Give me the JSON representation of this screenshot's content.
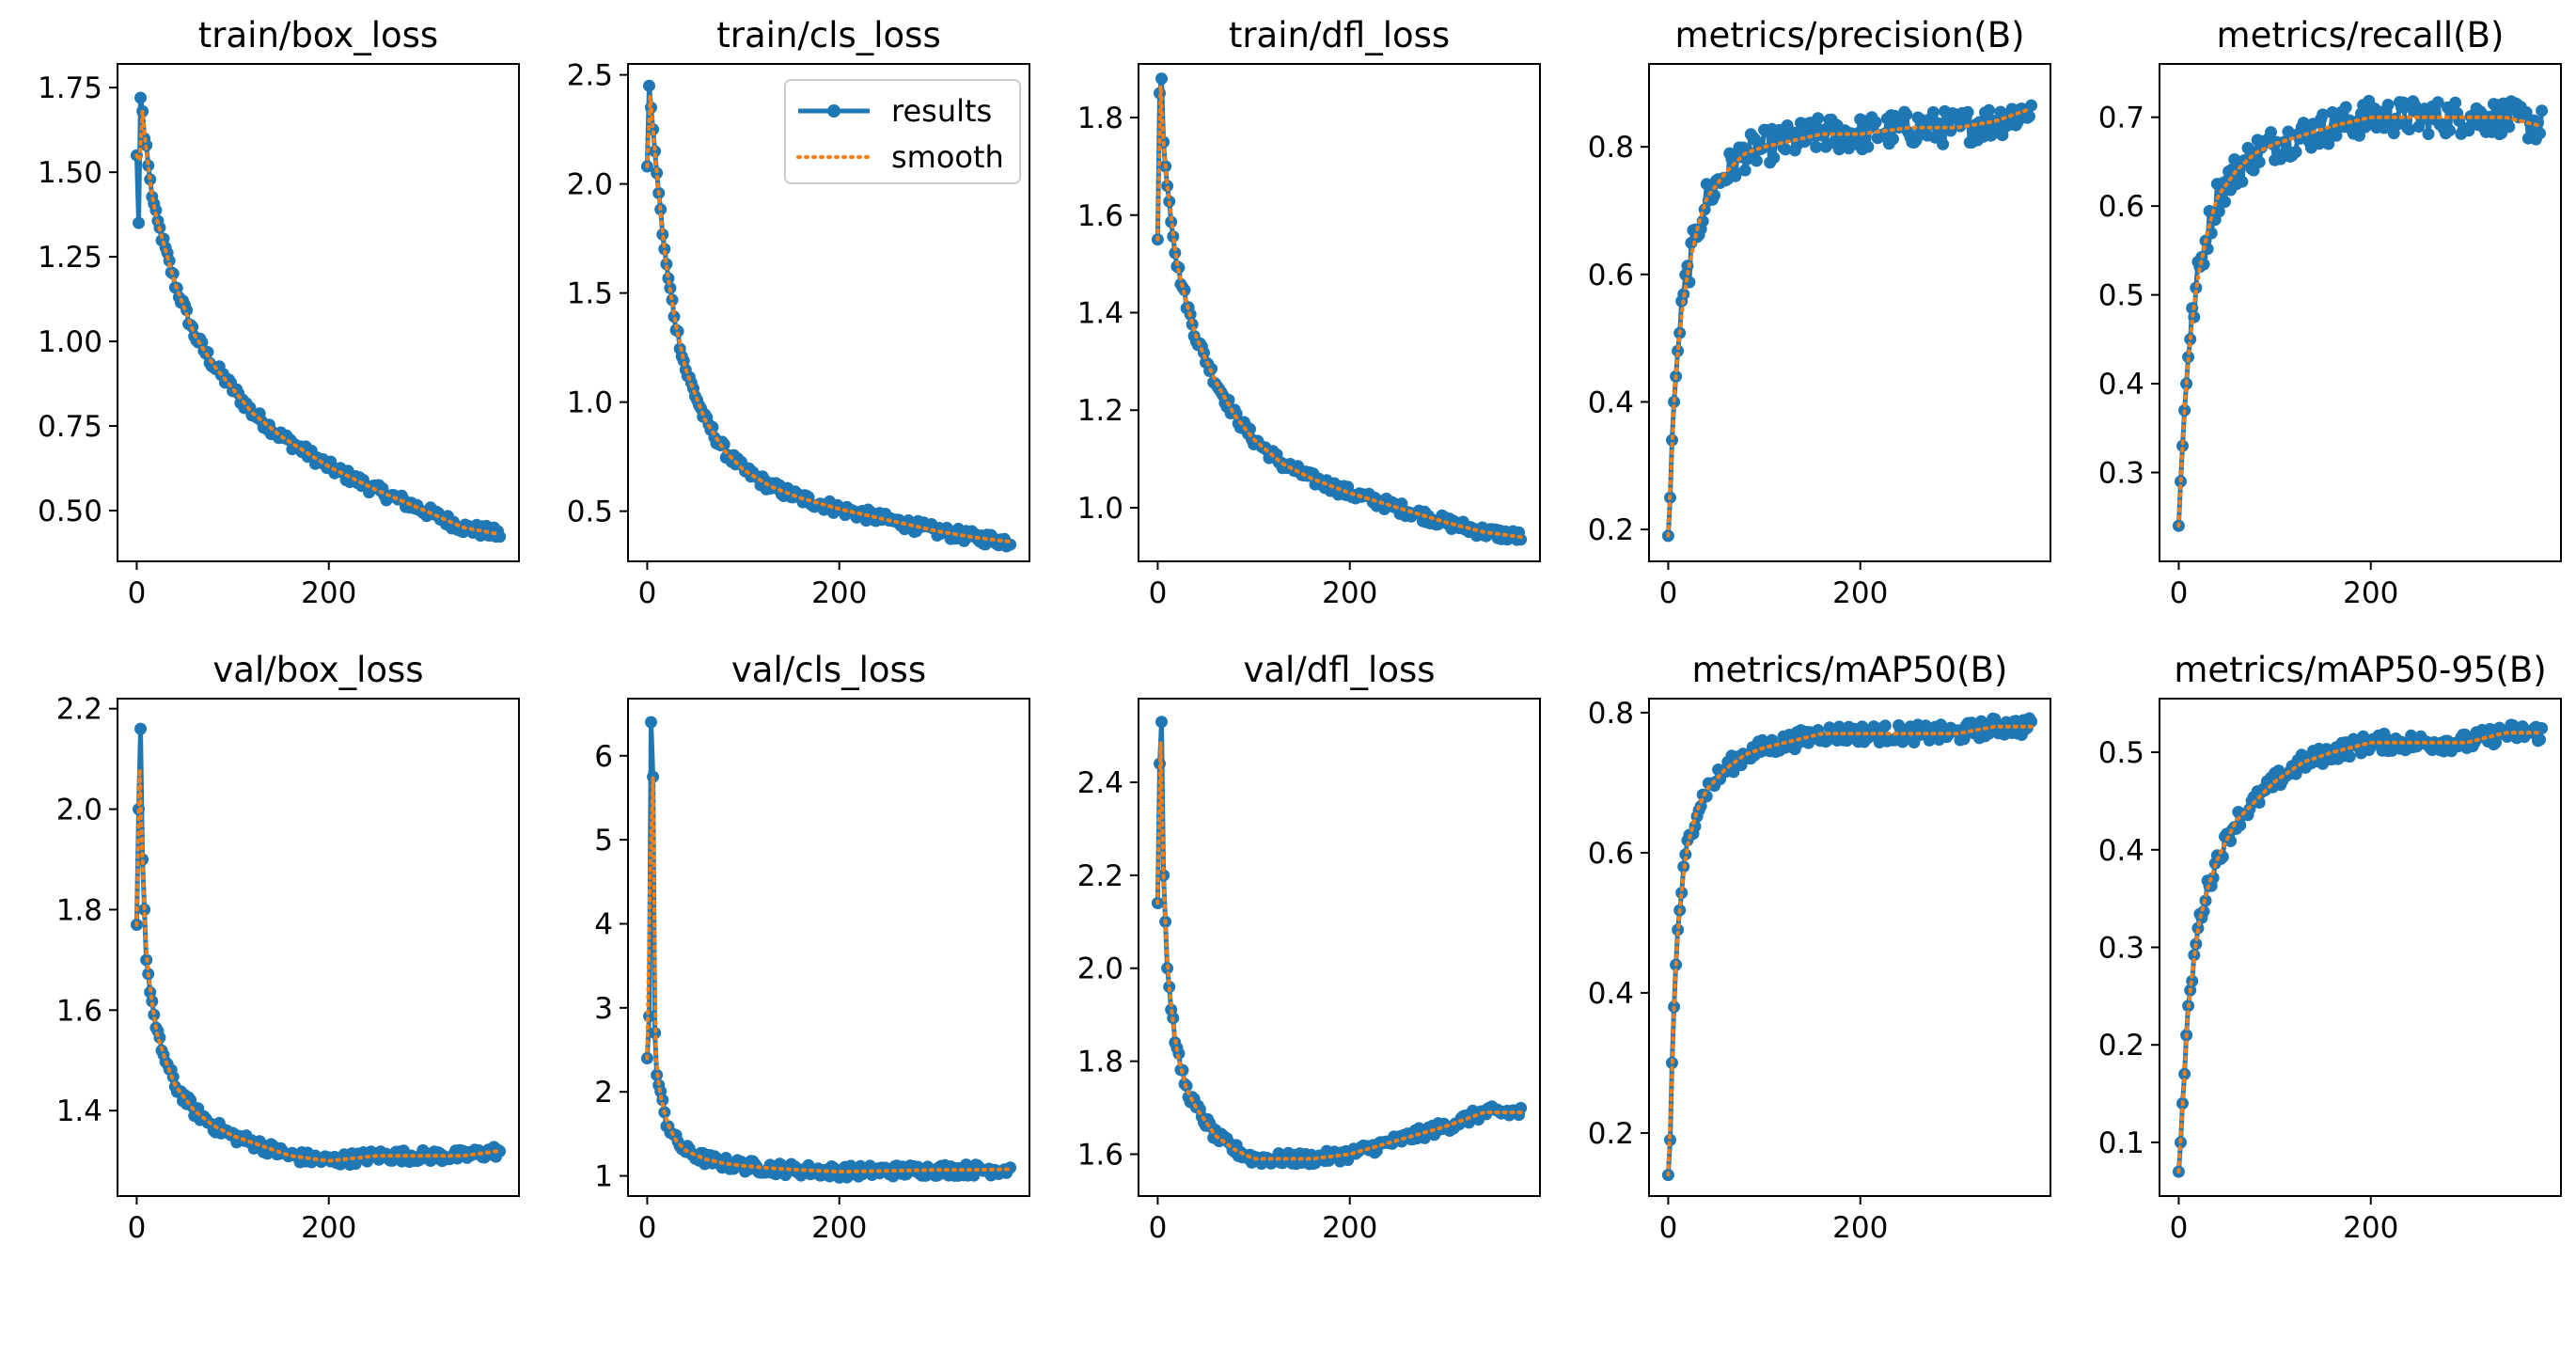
{
  "figure": {
    "description_free": true
  },
  "colors": {
    "results": "#1f77b4",
    "smooth": "#ff7f0e",
    "axes": "#000000",
    "background": "#ffffff"
  },
  "legend": {
    "location": "top-right",
    "panel": 1,
    "entries": [
      "results",
      "smooth"
    ]
  },
  "chart_data": [
    {
      "type": "line",
      "title": "train/box_loss",
      "xlim": [
        -20,
        398
      ],
      "ylim": [
        0.35,
        1.82
      ],
      "xticks": [
        0,
        200
      ],
      "yticks": [
        0.5,
        0.75,
        1.0,
        1.25,
        1.5,
        1.75
      ],
      "ytick_labels": [
        "0.50",
        "0.75",
        "1.00",
        "1.25",
        "1.50",
        "1.75"
      ],
      "x": [
        0,
        2,
        4,
        6,
        8,
        10,
        12,
        15,
        20,
        30,
        40,
        60,
        80,
        100,
        120,
        150,
        200,
        250,
        300,
        340,
        378
      ],
      "series": [
        {
          "name": "results",
          "values": [
            1.55,
            1.35,
            1.72,
            1.68,
            1.6,
            1.58,
            1.52,
            1.45,
            1.37,
            1.27,
            1.17,
            1.02,
            0.93,
            0.86,
            0.79,
            0.72,
            0.63,
            0.56,
            0.5,
            0.45,
            0.43
          ]
        }
      ]
    },
    {
      "type": "line",
      "title": "train/cls_loss",
      "xlim": [
        -20,
        398
      ],
      "ylim": [
        0.27,
        2.55
      ],
      "xticks": [
        0,
        200
      ],
      "yticks": [
        0.5,
        1.0,
        1.5,
        2.0,
        2.5
      ],
      "ytick_labels": [
        "0.5",
        "1.0",
        "1.5",
        "2.0",
        "2.5"
      ],
      "x": [
        0,
        2,
        4,
        6,
        8,
        10,
        15,
        20,
        30,
        40,
        60,
        80,
        100,
        130,
        160,
        200,
        250,
        300,
        340,
        378
      ],
      "series": [
        {
          "name": "results",
          "values": [
            2.08,
            2.45,
            2.35,
            2.25,
            2.15,
            2.05,
            1.82,
            1.62,
            1.35,
            1.15,
            0.92,
            0.78,
            0.69,
            0.61,
            0.56,
            0.51,
            0.46,
            0.41,
            0.38,
            0.36
          ]
        }
      ]
    },
    {
      "type": "line",
      "title": "train/dfl_loss",
      "xlim": [
        -20,
        398
      ],
      "ylim": [
        0.89,
        1.91
      ],
      "xticks": [
        0,
        200
      ],
      "yticks": [
        1.0,
        1.2,
        1.4,
        1.6,
        1.8
      ],
      "ytick_labels": [
        "1.0",
        "1.2",
        "1.4",
        "1.6",
        "1.8"
      ],
      "x": [
        0,
        2,
        4,
        6,
        8,
        10,
        15,
        20,
        30,
        40,
        60,
        80,
        100,
        130,
        160,
        200,
        250,
        300,
        340,
        378
      ],
      "series": [
        {
          "name": "results",
          "values": [
            1.55,
            1.85,
            1.88,
            1.75,
            1.7,
            1.66,
            1.58,
            1.5,
            1.42,
            1.35,
            1.26,
            1.19,
            1.14,
            1.09,
            1.06,
            1.03,
            1.0,
            0.97,
            0.95,
            0.94
          ]
        }
      ]
    },
    {
      "type": "line",
      "title": "metrics/precision(B)",
      "xlim": [
        -20,
        398
      ],
      "ylim": [
        0.15,
        0.93
      ],
      "xticks": [
        0,
        200
      ],
      "yticks": [
        0.2,
        0.4,
        0.6,
        0.8
      ],
      "ytick_labels": [
        "0.2",
        "0.4",
        "0.6",
        "0.8"
      ],
      "x": [
        0,
        2,
        4,
        6,
        8,
        10,
        15,
        20,
        30,
        40,
        60,
        80,
        100,
        130,
        160,
        200,
        250,
        300,
        340,
        378
      ],
      "series": [
        {
          "name": "results",
          "values": [
            0.19,
            0.25,
            0.34,
            0.4,
            0.44,
            0.48,
            0.55,
            0.6,
            0.67,
            0.72,
            0.76,
            0.79,
            0.8,
            0.81,
            0.82,
            0.82,
            0.83,
            0.83,
            0.84,
            0.86
          ]
        }
      ]
    },
    {
      "type": "line",
      "title": "metrics/recall(B)",
      "xlim": [
        -20,
        398
      ],
      "ylim": [
        0.2,
        0.76
      ],
      "xticks": [
        0,
        200
      ],
      "yticks": [
        0.3,
        0.4,
        0.5,
        0.6,
        0.7
      ],
      "ytick_labels": [
        "0.3",
        "0.4",
        "0.5",
        "0.6",
        "0.7"
      ],
      "x": [
        0,
        2,
        4,
        6,
        8,
        10,
        15,
        20,
        30,
        40,
        60,
        80,
        100,
        130,
        160,
        200,
        250,
        300,
        340,
        378
      ],
      "series": [
        {
          "name": "results",
          "values": [
            0.24,
            0.29,
            0.33,
            0.37,
            0.4,
            0.43,
            0.48,
            0.52,
            0.57,
            0.61,
            0.64,
            0.66,
            0.67,
            0.68,
            0.69,
            0.7,
            0.7,
            0.7,
            0.7,
            0.69
          ]
        }
      ]
    },
    {
      "type": "line",
      "title": "val/box_loss",
      "xlim": [
        -20,
        398
      ],
      "ylim": [
        1.23,
        2.22
      ],
      "xticks": [
        0,
        200
      ],
      "yticks": [
        1.4,
        1.6,
        1.8,
        2.0,
        2.2
      ],
      "ytick_labels": [
        "1.4",
        "1.6",
        "1.8",
        "2.0",
        "2.2"
      ],
      "x": [
        0,
        2,
        4,
        6,
        8,
        10,
        15,
        20,
        30,
        40,
        60,
        80,
        100,
        130,
        160,
        200,
        250,
        300,
        340,
        378
      ],
      "series": [
        {
          "name": "results",
          "values": [
            1.77,
            2.0,
            2.16,
            1.9,
            1.8,
            1.7,
            1.63,
            1.56,
            1.5,
            1.45,
            1.4,
            1.37,
            1.35,
            1.33,
            1.31,
            1.3,
            1.31,
            1.31,
            1.31,
            1.32
          ]
        }
      ]
    },
    {
      "type": "line",
      "title": "val/cls_loss",
      "xlim": [
        -20,
        398
      ],
      "ylim": [
        0.76,
        6.68
      ],
      "xticks": [
        0,
        200
      ],
      "yticks": [
        1,
        2,
        3,
        4,
        5,
        6
      ],
      "ytick_labels": [
        "1",
        "2",
        "3",
        "4",
        "5",
        "6"
      ],
      "x": [
        0,
        2,
        4,
        6,
        8,
        10,
        15,
        20,
        30,
        40,
        60,
        80,
        100,
        130,
        160,
        200,
        250,
        300,
        340,
        378
      ],
      "series": [
        {
          "name": "results",
          "values": [
            2.4,
            2.9,
            6.4,
            5.75,
            2.7,
            2.2,
            1.9,
            1.65,
            1.42,
            1.3,
            1.2,
            1.15,
            1.12,
            1.09,
            1.07,
            1.05,
            1.06,
            1.07,
            1.07,
            1.08
          ]
        }
      ]
    },
    {
      "type": "line",
      "title": "val/dfl_loss",
      "xlim": [
        -20,
        398
      ],
      "ylim": [
        1.51,
        2.58
      ],
      "xticks": [
        0,
        200
      ],
      "yticks": [
        1.6,
        1.8,
        2.0,
        2.2,
        2.4
      ],
      "ytick_labels": [
        "1.6",
        "1.8",
        "2.0",
        "2.2",
        "2.4"
      ],
      "x": [
        0,
        2,
        4,
        6,
        8,
        10,
        15,
        20,
        30,
        40,
        60,
        80,
        100,
        130,
        160,
        200,
        250,
        300,
        340,
        378
      ],
      "series": [
        {
          "name": "results",
          "values": [
            2.14,
            2.44,
            2.53,
            2.2,
            2.1,
            2.0,
            1.9,
            1.82,
            1.74,
            1.7,
            1.64,
            1.61,
            1.59,
            1.59,
            1.59,
            1.6,
            1.63,
            1.66,
            1.69,
            1.69
          ]
        }
      ]
    },
    {
      "type": "line",
      "title": "metrics/mAP50(B)",
      "xlim": [
        -20,
        398
      ],
      "ylim": [
        0.11,
        0.82
      ],
      "xticks": [
        0,
        200
      ],
      "yticks": [
        0.2,
        0.4,
        0.6,
        0.8
      ],
      "ytick_labels": [
        "0.2",
        "0.4",
        "0.6",
        "0.8"
      ],
      "x": [
        0,
        2,
        4,
        6,
        8,
        10,
        15,
        20,
        30,
        40,
        60,
        80,
        100,
        130,
        160,
        200,
        250,
        300,
        340,
        378
      ],
      "series": [
        {
          "name": "results",
          "values": [
            0.14,
            0.19,
            0.3,
            0.38,
            0.44,
            0.49,
            0.56,
            0.61,
            0.66,
            0.69,
            0.72,
            0.74,
            0.75,
            0.76,
            0.77,
            0.77,
            0.77,
            0.77,
            0.78,
            0.78
          ]
        }
      ]
    },
    {
      "type": "line",
      "title": "metrics/mAP50-95(B)",
      "xlim": [
        -20,
        398
      ],
      "ylim": [
        0.045,
        0.555
      ],
      "xticks": [
        0,
        200
      ],
      "yticks": [
        0.1,
        0.2,
        0.3,
        0.4,
        0.5
      ],
      "ytick_labels": [
        "0.1",
        "0.2",
        "0.3",
        "0.4",
        "0.5"
      ],
      "x": [
        0,
        2,
        4,
        6,
        8,
        10,
        15,
        20,
        30,
        40,
        60,
        80,
        100,
        130,
        160,
        200,
        250,
        300,
        340,
        378
      ],
      "series": [
        {
          "name": "results",
          "values": [
            0.07,
            0.1,
            0.14,
            0.17,
            0.21,
            0.24,
            0.28,
            0.32,
            0.36,
            0.39,
            0.43,
            0.45,
            0.47,
            0.49,
            0.5,
            0.51,
            0.51,
            0.51,
            0.52,
            0.52
          ]
        }
      ]
    }
  ]
}
